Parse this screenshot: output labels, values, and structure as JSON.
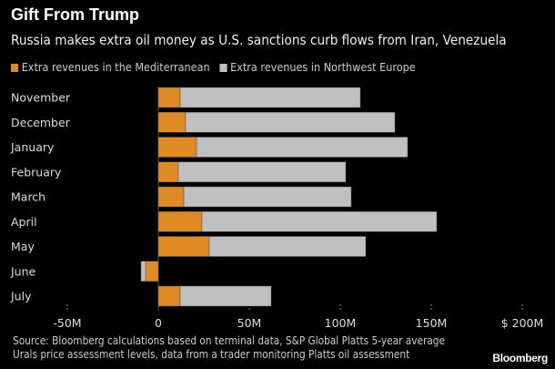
{
  "chart_data": {
    "type": "bar",
    "orientation": "horizontal",
    "stacked": true,
    "title": "Gift From Trump",
    "subtitle": "Russia makes extra oil money as U.S. sanctions curb flows from Iran, Venezuela",
    "categories": [
      "November",
      "December",
      "January",
      "February",
      "March",
      "April",
      "May",
      "June",
      "July"
    ],
    "series": [
      {
        "name": "Extra revenues in the Mediterranean",
        "color": "#df8b25",
        "values": [
          12,
          15,
          21,
          11,
          14,
          24,
          28,
          -7,
          12
        ]
      },
      {
        "name": "Extra revenues in Northwest Europe",
        "color": "#c0c0c0",
        "values": [
          99,
          115,
          116,
          92,
          92,
          129,
          86,
          -2.5,
          50
        ]
      }
    ],
    "xlim": [
      -50,
      200
    ],
    "ticks": [
      -50,
      0,
      50,
      100,
      150,
      200
    ],
    "tick_labels": [
      "-50M",
      "0",
      "50M",
      "100M",
      "150M",
      "$ 200M"
    ],
    "legend_position": "top-left",
    "source": "Source: Bloomberg calculations based on terminal data, S&P Global Platts 5-year average",
    "source2": "Urals price assessment levels, data from a trader monitoring Platts oil assessment",
    "logo": "Bloomberg"
  }
}
